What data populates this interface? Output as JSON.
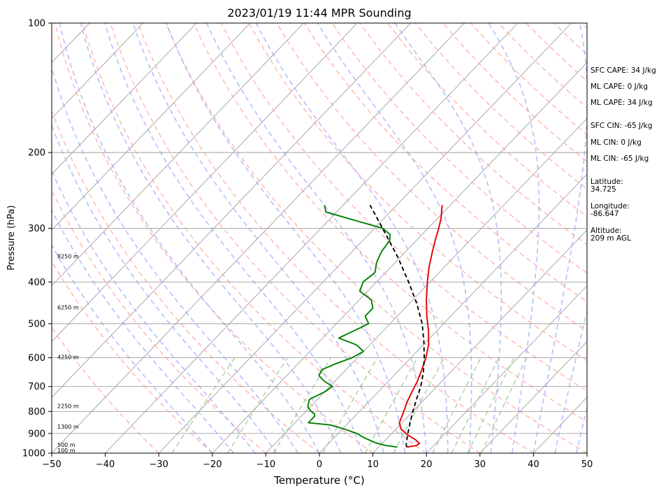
{
  "chart_data": {
    "type": "skew-t",
    "title": "2023/01/19 11:44 MPR Sounding",
    "xlabel": "Temperature (°C)",
    "ylabel": "Pressure (hPa)",
    "xlim": [
      -50,
      50
    ],
    "ylim": [
      1000,
      100
    ],
    "y_scale": "log",
    "x_ticks": [
      -50,
      -40,
      -30,
      -20,
      -10,
      0,
      10,
      20,
      30,
      40,
      50
    ],
    "x_tick_labels": [
      "−50",
      "−40",
      "−30",
      "−20",
      "−10",
      "0",
      "10",
      "20",
      "30",
      "40",
      "50"
    ],
    "y_ticks": [
      100,
      200,
      300,
      400,
      500,
      600,
      700,
      800,
      900,
      1000
    ],
    "y_tick_labels": [
      "100",
      "200",
      "300",
      "400",
      "500",
      "600",
      "700",
      "800",
      "900",
      "1000"
    ],
    "grid": true,
    "series": [
      {
        "color": "#e00000",
        "style": "solid",
        "points": [
          [
            968,
            15.2
          ],
          [
            960,
            16.8
          ],
          [
            950,
            17.0
          ],
          [
            930,
            15.5
          ],
          [
            910,
            13.5
          ],
          [
            880,
            11.0
          ],
          [
            850,
            9.5
          ],
          [
            800,
            8.3
          ],
          [
            760,
            7.2
          ],
          [
            720,
            6.3
          ],
          [
            680,
            5.4
          ],
          [
            640,
            4.2
          ],
          [
            600,
            2.8
          ],
          [
            560,
            1.0
          ],
          [
            520,
            -1.5
          ],
          [
            480,
            -4.5
          ],
          [
            440,
            -7.5
          ],
          [
            400,
            -10.5
          ],
          [
            370,
            -12.8
          ],
          [
            340,
            -15.0
          ],
          [
            320,
            -16.5
          ],
          [
            300,
            -18.0
          ],
          [
            285,
            -19.3
          ],
          [
            265,
            -21.5
          ]
        ]
      },
      {
        "color": "#008000",
        "style": "solid",
        "points": [
          [
            968,
            13.5
          ],
          [
            960,
            11.0
          ],
          [
            945,
            8.5
          ],
          [
            920,
            5.5
          ],
          [
            900,
            3.5
          ],
          [
            880,
            0.5
          ],
          [
            860,
            -3.0
          ],
          [
            850,
            -7.5
          ],
          [
            820,
            -7.5
          ],
          [
            810,
            -8.0
          ],
          [
            800,
            -9.0
          ],
          [
            780,
            -10.5
          ],
          [
            750,
            -11.5
          ],
          [
            720,
            -10.0
          ],
          [
            700,
            -9.5
          ],
          [
            680,
            -12.0
          ],
          [
            660,
            -14.0
          ],
          [
            640,
            -14.5
          ],
          [
            620,
            -13.0
          ],
          [
            600,
            -11.0
          ],
          [
            580,
            -10.0
          ],
          [
            560,
            -12.5
          ],
          [
            540,
            -17.0
          ],
          [
            520,
            -15.5
          ],
          [
            500,
            -14.0
          ],
          [
            480,
            -16.0
          ],
          [
            460,
            -16.0
          ],
          [
            440,
            -17.8
          ],
          [
            420,
            -21.5
          ],
          [
            400,
            -22.5
          ],
          [
            380,
            -22.0
          ],
          [
            360,
            -23.5
          ],
          [
            340,
            -24.5
          ],
          [
            320,
            -25.0
          ],
          [
            310,
            -26.0
          ],
          [
            300,
            -28.5
          ],
          [
            285,
            -36.5
          ],
          [
            275,
            -42.0
          ],
          [
            265,
            -43.5
          ]
        ]
      },
      {
        "color": "#000000",
        "style": "dashed",
        "points": [
          [
            968,
            15.2
          ],
          [
            950,
            14.5
          ],
          [
            900,
            13.0
          ],
          [
            850,
            11.5
          ],
          [
            800,
            10.0
          ],
          [
            750,
            8.5
          ],
          [
            700,
            7.0
          ],
          [
            650,
            5.0
          ],
          [
            600,
            2.5
          ],
          [
            550,
            -0.5
          ],
          [
            500,
            -4.0
          ],
          [
            450,
            -8.5
          ],
          [
            400,
            -14.0
          ],
          [
            350,
            -20.5
          ],
          [
            300,
            -28.5
          ],
          [
            265,
            -35.0
          ]
        ]
      }
    ],
    "height_labels": [
      {
        "label": "100 m",
        "pressure": 1000
      },
      {
        "label": "500 m",
        "pressure": 960
      },
      {
        "label": "1300 m",
        "pressure": 870
      },
      {
        "label": "2250 m",
        "pressure": 780
      },
      {
        "label": "4250 m",
        "pressure": 600
      },
      {
        "label": "6250 m",
        "pressure": 460
      },
      {
        "label": "8250 m",
        "pressure": 350
      }
    ],
    "info_lines": [
      "SFC CAPE: 34 J/kg",
      "ML CAPE: 0 J/kg",
      "ML CAPE: 34 J/kg",
      "SFC CIN: -65 J/kg",
      "ML CIN: 0 J/kg",
      "ML CIN: -65 J/kg",
      "Latitude:",
      "34.725",
      "Longitude:",
      "-86.647",
      "Altitude:",
      "209 m AGL"
    ],
    "colors": {
      "isotherm": "#a0a0a0",
      "dry_adiabat": "#ffa5a5",
      "moist_adiabat": "#aaaaff",
      "mixing_ratio": "#90cc90"
    }
  }
}
